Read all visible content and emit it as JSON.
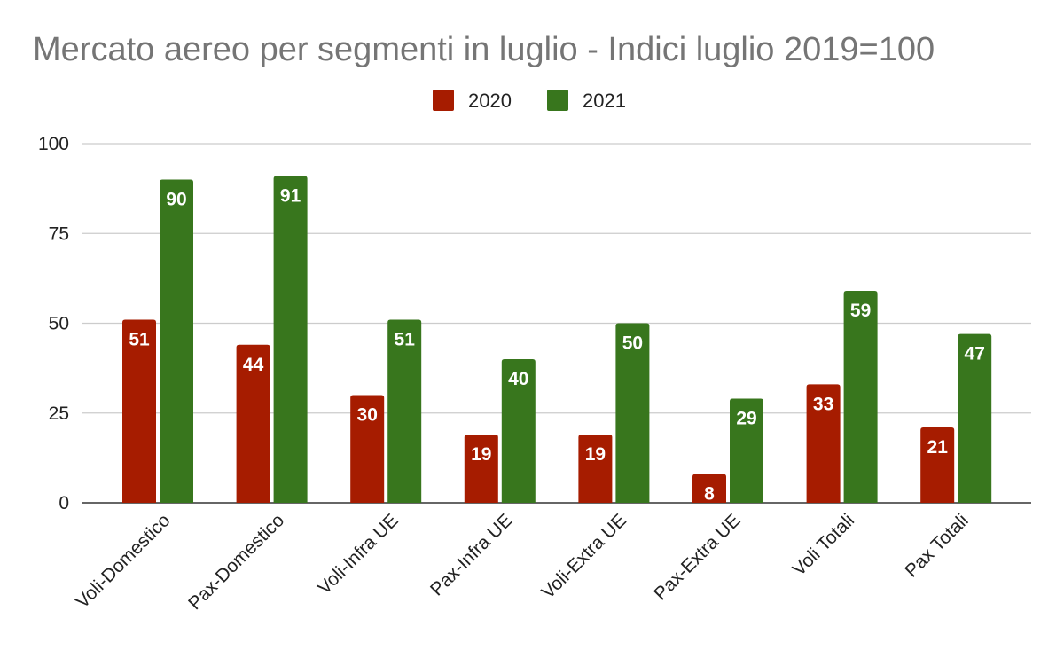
{
  "chart_data": {
    "type": "bar",
    "title": "Mercato aereo per segmenti in luglio - Indici luglio 2019=100",
    "xlabel": "",
    "ylabel": "",
    "ylim": [
      0,
      100
    ],
    "yticks": [
      0,
      25,
      50,
      75,
      100
    ],
    "grid": true,
    "legend_position": "top",
    "categories": [
      "Voli-Domestico",
      "Pax-Domestico",
      "Voli-Infra UE",
      "Pax-Infra UE",
      "Voli-Extra UE",
      "Pax-Extra UE",
      "Voli Totali",
      "Pax Totali"
    ],
    "series": [
      {
        "name": "2020",
        "color": "#a61c00",
        "values": [
          51,
          44,
          30,
          19,
          19,
          8,
          33,
          21
        ]
      },
      {
        "name": "2021",
        "color": "#38761d",
        "values": [
          90,
          91,
          51,
          40,
          50,
          29,
          59,
          47
        ]
      }
    ]
  }
}
